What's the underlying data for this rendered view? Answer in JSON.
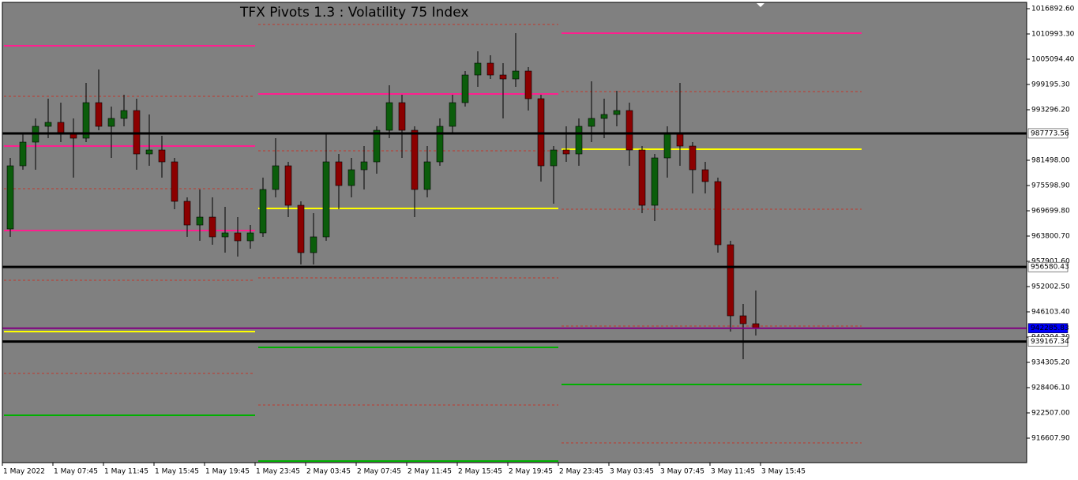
{
  "chart_data": {
    "type": "candlestick",
    "title": "TFX Pivots 1.3 : Volatility 75 Index",
    "categories": [
      "1 May 2022",
      "1 May 07:45",
      "1 May 11:45",
      "1 May 15:45",
      "1 May 19:45",
      "1 May 23:45",
      "2 May 03:45",
      "2 May 07:45",
      "2 May 11:45",
      "2 May 15:45",
      "2 May 19:45",
      "2 May 23:45",
      "3 May 03:45",
      "3 May 07:45",
      "3 May 11:45",
      "3 May 15:45"
    ],
    "candles": {
      "open": [
        965458,
        980206,
        985737,
        989424,
        990346,
        987580,
        986659,
        994954,
        989424,
        991267,
        993111,
        982972,
        983893,
        981128,
        971911,
        966380,
        968224,
        963615,
        964537,
        962693,
        964537,
        974676,
        980206,
        970989,
        959928,
        963615,
        981128,
        975598,
        979285,
        981128,
        988502,
        994954,
        988502,
        974676,
        981128,
        989424,
        994954,
        1001407,
        1004172,
        1001407,
        1000485,
        1002328,
        995876,
        980206,
        983893,
        982972,
        989424,
        991267,
        992189,
        993111,
        983893,
        970989,
        982050,
        987580,
        984815,
        979285,
        976519,
        961771,
        945180,
        943336
      ],
      "high": [
        982050,
        987580,
        991267,
        995876,
        994954,
        991267,
        999563,
        1002697,
        994033,
        996798,
        995876,
        992189,
        987212,
        982050,
        972832,
        974676,
        972832,
        970620,
        968224,
        966380,
        977441,
        986659,
        981128,
        971911,
        969145,
        987580,
        982972,
        982050,
        984815,
        989424,
        999010,
        996798,
        989424,
        984815,
        991267,
        996798,
        1002328,
        1006937,
        1006015,
        1004172,
        1011177,
        1003250,
        996798,
        984815,
        989424,
        991267,
        999932,
        995876,
        997720,
        994954,
        984815,
        982972,
        989424,
        999563,
        985737,
        981128,
        977441,
        962693,
        947945,
        951079
      ],
      "low": [
        963615,
        979285,
        979285,
        986659,
        985737,
        977441,
        985737,
        988502,
        982050,
        989424,
        979285,
        980206,
        977441,
        970067,
        963615,
        962693,
        961771,
        959928,
        959006,
        960850,
        963615,
        972832,
        968224,
        957163,
        957163,
        962693,
        970067,
        972832,
        974676,
        978363,
        986659,
        982050,
        968224,
        972832,
        980206,
        987580,
        994033,
        998641,
        1000485,
        991267,
        998641,
        993111,
        976519,
        971358,
        981128,
        980206,
        985737,
        986659,
        989424,
        980206,
        969145,
        967302,
        977441,
        980206,
        973754,
        973754,
        959928,
        941493,
        935041,
        940571
      ],
      "close": [
        980206,
        985737,
        989424,
        990346,
        987580,
        986659,
        994954,
        989424,
        991267,
        993111,
        982972,
        983893,
        981128,
        971911,
        966380,
        968224,
        963615,
        964537,
        962693,
        964537,
        974676,
        980206,
        970989,
        959928,
        963615,
        981128,
        975598,
        979285,
        981128,
        988502,
        994954,
        988502,
        974676,
        981128,
        989424,
        994954,
        1001407,
        1004172,
        1001407,
        1000485,
        1002328,
        995876,
        980206,
        983893,
        982972,
        989424,
        991267,
        992189,
        993111,
        983893,
        970989,
        982050,
        987580,
        984815,
        979285,
        976519,
        961771,
        945180,
        943336,
        942286
      ]
    },
    "up_color": "#0b5d0b",
    "down_color": "#8b0000",
    "days": [
      {
        "start": 0,
        "end": 20,
        "levels": [
          {
            "price": 1008229,
            "color": "#ff1f8f",
            "dashed": false
          },
          {
            "price": 996430,
            "color": "#c0392b",
            "dashed": true
          },
          {
            "price": 984816,
            "color": "#ff1f8f",
            "dashed": false
          },
          {
            "price": 974861,
            "color": "#c0392b",
            "dashed": true
          },
          {
            "price": 965091,
            "color": "#ff1f8f",
            "dashed": false
          },
          {
            "price": 953477,
            "color": "#c0392b",
            "dashed": true
          },
          {
            "price": 941494,
            "color": "#ffff00",
            "dashed": false
          },
          {
            "price": 931723,
            "color": "#c0392b",
            "dashed": true
          },
          {
            "price": 921953,
            "color": "#00b000",
            "dashed": false
          }
        ]
      },
      {
        "start": 20,
        "end": 44,
        "levels": [
          {
            "price": 1013206,
            "color": "#c0392b",
            "dashed": true
          },
          {
            "price": 996983,
            "color": "#ff1f8f",
            "dashed": false
          },
          {
            "price": 983710,
            "color": "#c0392b",
            "dashed": true
          },
          {
            "price": 970252,
            "color": "#ffff00",
            "dashed": false
          },
          {
            "price": 954030,
            "color": "#c0392b",
            "dashed": true
          },
          {
            "price": 937807,
            "color": "#00b000",
            "dashed": false
          },
          {
            "price": 924349,
            "color": "#c0392b",
            "dashed": true
          },
          {
            "price": 911260,
            "color": "#00b000",
            "dashed": false
          }
        ]
      },
      {
        "start": 44,
        "end": 68,
        "levels": [
          {
            "price": 1011178,
            "color": "#ff1f8f",
            "dashed": false
          },
          {
            "price": 997536,
            "color": "#c0392b",
            "dashed": true
          },
          {
            "price": 984079,
            "color": "#ffff00",
            "dashed": false
          },
          {
            "price": 970068,
            "color": "#c0392b",
            "dashed": true
          },
          {
            "price": 956611,
            "color": "#006400",
            "dashed": false
          },
          {
            "price": 942784,
            "color": "#c0392b",
            "dashed": true
          },
          {
            "price": 929142,
            "color": "#00b000",
            "dashed": false
          },
          {
            "price": 915500,
            "color": "#c0392b",
            "dashed": true
          }
        ]
      }
    ],
    "hlines": [
      {
        "price": 987773.56,
        "color": "#000000",
        "label_bg": "#ffffff",
        "label_color": "#000000"
      },
      {
        "price": 956580.43,
        "color": "#000000",
        "label_bg": "#ffffff",
        "label_color": "#000000"
      },
      {
        "price": 942285.83,
        "color": "#800080",
        "label_bg": "#0000ff",
        "label_color": "#ffffff"
      },
      {
        "price": 939167.34,
        "color": "#000000",
        "label_bg": "#ffffff",
        "label_color": "#000000"
      }
    ],
    "ylim": [
      910894,
      1018367
    ],
    "yticks": [
      {
        "value": 1016892.6,
        "label": "1016892.60"
      },
      {
        "value": 1010993.3,
        "label": "1010993.30"
      },
      {
        "value": 1005094.4,
        "label": "1005094.40"
      },
      {
        "value": 999195.3,
        "label": "999195.30"
      },
      {
        "value": 993296.2,
        "label": "993296.20"
      },
      {
        "value": 981498,
        "label": "981498.00"
      },
      {
        "value": 975598.9,
        "label": "975598.90"
      },
      {
        "value": 969699.8,
        "label": "969699.80"
      },
      {
        "value": 963800.7,
        "label": "963800.70"
      },
      {
        "value": 957901.6,
        "label": "957901.60"
      },
      {
        "value": 952002.5,
        "label": "952002.50"
      },
      {
        "value": 946103.4,
        "label": "946103.40"
      },
      {
        "value": 940204.3,
        "label": "940204.30"
      },
      {
        "value": 934305.2,
        "label": "934305.20"
      },
      {
        "value": 928406.1,
        "label": "928406.10"
      },
      {
        "value": 922507,
        "label": "922507.00"
      },
      {
        "value": 916607.9,
        "label": "916607.90"
      }
    ]
  }
}
